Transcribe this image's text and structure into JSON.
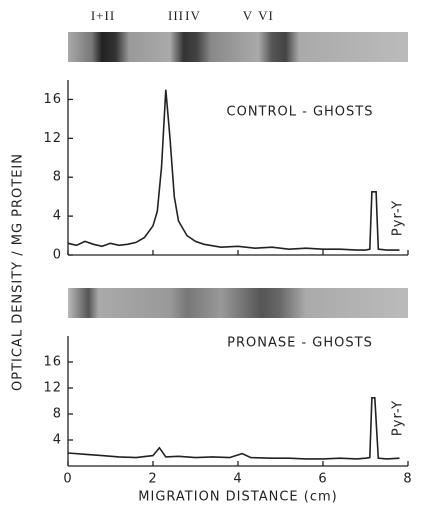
{
  "chart_data": [
    {
      "type": "line",
      "band_labels": [
        "I+II",
        "III",
        "IV",
        "V",
        "VI"
      ],
      "annotations": [
        "CONTROL - GHOSTS",
        "Pyr-Y"
      ],
      "ylabel": "OPTICAL DENSITY / MG PROTEIN",
      "x": [
        0,
        0.2,
        0.4,
        0.6,
        0.8,
        1.0,
        1.2,
        1.4,
        1.6,
        1.8,
        2.0,
        2.1,
        2.2,
        2.3,
        2.4,
        2.5,
        2.6,
        2.8,
        3.0,
        3.2,
        3.6,
        4.0,
        4.4,
        4.8,
        5.2,
        5.6,
        6.0,
        6.4,
        6.8,
        7.0,
        7.1,
        7.15,
        7.25,
        7.3,
        7.5,
        7.8
      ],
      "values": [
        1.2,
        1.0,
        1.4,
        1.1,
        0.9,
        1.2,
        1.0,
        1.1,
        1.3,
        1.8,
        3.0,
        4.5,
        9,
        17,
        12,
        6,
        3.5,
        2.0,
        1.4,
        1.1,
        0.8,
        0.9,
        0.7,
        0.8,
        0.6,
        0.7,
        0.6,
        0.6,
        0.5,
        0.5,
        0.6,
        6.5,
        6.5,
        0.6,
        0.5,
        0.5
      ],
      "color": "#222222",
      "xlim": [
        0,
        8
      ],
      "xticks": [
        0,
        2,
        4,
        6,
        8
      ],
      "ylim": [
        0,
        18
      ],
      "yticks": [
        0,
        4,
        8,
        12,
        16
      ]
    },
    {
      "type": "line",
      "annotations": [
        "PRONASE - GHOSTS",
        "Pyr-Y"
      ],
      "xlabel": "MIGRATION DISTANCE (cm)",
      "x": [
        0,
        0.4,
        0.8,
        1.2,
        1.6,
        2.0,
        2.15,
        2.3,
        2.6,
        3.0,
        3.4,
        3.8,
        4.1,
        4.3,
        4.8,
        5.2,
        5.6,
        6.0,
        6.4,
        6.8,
        7.0,
        7.1,
        7.15,
        7.22,
        7.3,
        7.5,
        7.8
      ],
      "values": [
        2.0,
        1.8,
        1.6,
        1.4,
        1.3,
        1.6,
        2.8,
        1.4,
        1.5,
        1.3,
        1.4,
        1.3,
        1.9,
        1.3,
        1.2,
        1.2,
        1.1,
        1.1,
        1.2,
        1.1,
        1.2,
        1.3,
        10.5,
        10.5,
        1.2,
        1.1,
        1.2
      ],
      "color": "#222222",
      "xlim": [
        0,
        8
      ],
      "xticks": [
        0,
        2,
        4,
        6,
        8
      ],
      "ylim": [
        0,
        20
      ],
      "yticks": [
        4,
        8,
        12,
        16
      ]
    }
  ]
}
